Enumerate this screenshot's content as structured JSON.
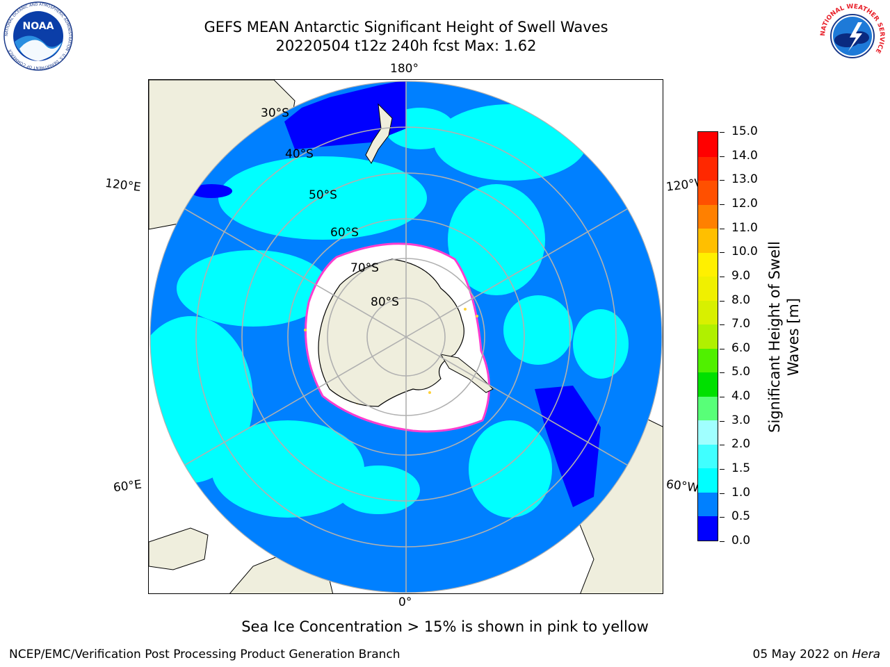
{
  "header": {
    "title_line1": "GEFS MEAN Antarctic Significant Height of Swell Waves",
    "title_line2": "20220504 t12z 240h fcst   Max: 1.62"
  },
  "map": {
    "projection": "south-polar-stereographic",
    "longitude_labels": {
      "top": "180°",
      "bottom": "0°",
      "left_upper": "120°E",
      "left_lower": "60°E",
      "right_upper": "120°W",
      "right_lower": "60°W"
    },
    "latitude_labels": [
      "30°S",
      "40°S",
      "50°S",
      "60°S",
      "70°S",
      "80°S"
    ],
    "colors": {
      "land": "#efeedd",
      "sea_ice_edge": "#ff3dcf",
      "sea_ice_low": "#ffd23a"
    }
  },
  "colorbar": {
    "label_line1": "Significant Height of Swell",
    "label_line2": "Waves [m]",
    "ticks": [
      "0.0",
      "0.5",
      "1.0",
      "1.5",
      "2.0",
      "3.0",
      "4.0",
      "5.0",
      "6.0",
      "7.0",
      "8.0",
      "9.0",
      "10.0",
      "11.0",
      "12.0",
      "13.0",
      "14.0",
      "15.0"
    ],
    "colors": [
      "#0000ff",
      "#0080ff",
      "#00ffff",
      "#40ffff",
      "#a0ffff",
      "#58ff78",
      "#00e000",
      "#50f000",
      "#b0f000",
      "#d8f000",
      "#f0f000",
      "#fff000",
      "#ffbf00",
      "#ff8000",
      "#ff5000",
      "#ff2800",
      "#ff0000"
    ]
  },
  "footer": {
    "note": "Sea Ice Concentration > 15% is shown in pink to yellow",
    "credit": "NCEP/EMC/Verification Post Processing Product Generation Branch",
    "date_prefix": "05 May 2022 on ",
    "machine": "Hera"
  },
  "logos": {
    "noaa_text": "NOAA",
    "noaa_ring_text": "NATIONAL OCEANIC AND ATMOSPHERIC ADMINISTRATION · U.S. DEPARTMENT OF COMMERCE",
    "nws_ring_text": "NATIONAL WEATHER SERVICE"
  }
}
